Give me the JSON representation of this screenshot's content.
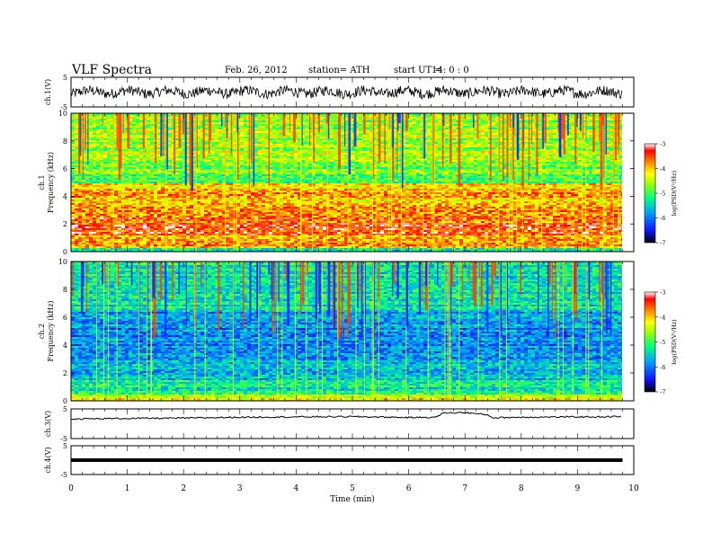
{
  "header": {
    "title": "VLF  Spectra",
    "date": "Feb. 26, 2012",
    "station": "station= ATH",
    "start_label": "start  UT  =",
    "start_value": "14: 0  : 0"
  },
  "chart_data": [
    {
      "type": "line",
      "panel": "ch1-waveform",
      "ylabel": "ch.1(V)",
      "ylim": [
        -5,
        5
      ],
      "yticks": [
        "5",
        "-5"
      ],
      "xlim": [
        0,
        10
      ],
      "description_values": {
        "mean": 0,
        "amplitude_range": [
          -2.5,
          2.5
        ]
      }
    },
    {
      "type": "heatmap",
      "panel": "ch1-spectrogram",
      "ylabel": [
        "ch.1",
        "Frequency  (kHz)"
      ],
      "ylim": [
        0,
        10
      ],
      "yticks": [
        "0",
        "2",
        "4",
        "6",
        "8",
        "10"
      ],
      "xlim": [
        0,
        10
      ],
      "colorbar": {
        "label": "log(PSD(V²/Hz)",
        "ticks": [
          "-3",
          "-4",
          "-5",
          "-6",
          "-7"
        ],
        "range": [
          -7,
          -3
        ]
      },
      "bands": [
        {
          "f": [
            0,
            0.3
          ],
          "v": -5.2
        },
        {
          "f": [
            0.3,
            1.2
          ],
          "v": -3.9
        },
        {
          "f": [
            1.2,
            3.2
          ],
          "v": -3.6
        },
        {
          "f": [
            3.2,
            5.0
          ],
          "v": -4.0
        },
        {
          "f": [
            5.0,
            6.5
          ],
          "v": -4.9
        },
        {
          "f": [
            6.5,
            10
          ],
          "v": -4.6
        }
      ]
    },
    {
      "type": "heatmap",
      "panel": "ch2-spectrogram",
      "ylabel": [
        "ch.2",
        "Frequency  (kHz)"
      ],
      "ylim": [
        0,
        10
      ],
      "yticks": [
        "0",
        "2",
        "4",
        "6",
        "8",
        "10"
      ],
      "xlim": [
        0,
        10
      ],
      "colorbar": {
        "label": "log(PSD(V²/Hz)",
        "ticks": [
          "-3",
          "-4",
          "-5",
          "-6",
          "-7"
        ],
        "range": [
          -7,
          -3
        ]
      },
      "bands": [
        {
          "f": [
            0,
            0.5
          ],
          "v": -4.3
        },
        {
          "f": [
            0.5,
            1.5
          ],
          "v": -5.3
        },
        {
          "f": [
            1.5,
            3.0
          ],
          "v": -5.6
        },
        {
          "f": [
            3.0,
            6.5
          ],
          "v": -5.9
        },
        {
          "f": [
            6.5,
            10
          ],
          "v": -5.3
        }
      ]
    },
    {
      "type": "line",
      "panel": "ch3-waveform",
      "ylabel": "ch.3(V)",
      "ylim": [
        -5,
        5
      ],
      "yticks": [
        "5",
        "-5"
      ],
      "xlim": [
        0,
        10
      ],
      "points": [
        [
          0,
          1.6
        ],
        [
          1,
          1.8
        ],
        [
          2,
          1.9
        ],
        [
          3,
          2.2
        ],
        [
          4,
          2.3
        ],
        [
          5,
          2.4
        ],
        [
          6,
          2.1
        ],
        [
          6.5,
          2.2
        ],
        [
          6.6,
          3.6
        ],
        [
          7,
          3.8
        ],
        [
          7.4,
          3.0
        ],
        [
          7.5,
          2.0
        ],
        [
          8,
          2.2
        ],
        [
          9,
          2.3
        ],
        [
          9.8,
          2.4
        ]
      ]
    },
    {
      "type": "line",
      "panel": "ch4-waveform",
      "ylabel": "ch.4(V)",
      "ylim": [
        -5,
        5
      ],
      "yticks": [
        "5",
        "-5"
      ],
      "xlim": [
        0,
        10
      ],
      "points": [
        [
          0,
          0
        ],
        [
          9.8,
          0
        ]
      ]
    }
  ],
  "xaxis": {
    "label": "Time  (min)",
    "ticks": [
      "0",
      "1",
      "2",
      "3",
      "4",
      "5",
      "6",
      "7",
      "8",
      "9",
      "10"
    ],
    "range": [
      0,
      10
    ]
  }
}
